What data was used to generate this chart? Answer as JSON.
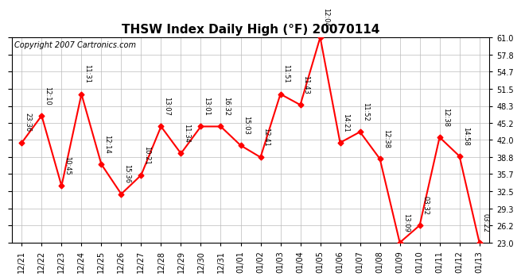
{
  "title": "THSW Index Daily High (°F) 20070114",
  "copyright": "Copyright 2007 Cartronics.com",
  "x_labels": [
    "12/21",
    "12/22",
    "12/23",
    "12/24",
    "12/25",
    "12/26",
    "12/27",
    "12/28",
    "12/29",
    "12/30",
    "12/31",
    "01/01",
    "01/02",
    "01/03",
    "01/04",
    "01/05",
    "01/06",
    "01/07",
    "01/08",
    "01/09",
    "01/10",
    "01/11",
    "01/12",
    "01/13"
  ],
  "y_values": [
    41.5,
    46.5,
    33.5,
    50.5,
    37.5,
    32.0,
    35.5,
    44.5,
    39.5,
    44.5,
    44.5,
    41.0,
    38.8,
    50.5,
    48.5,
    61.0,
    41.5,
    43.5,
    38.5,
    23.0,
    26.2,
    42.5,
    39.0,
    23.0
  ],
  "time_labels": [
    "23:36",
    "12:10",
    "10:45",
    "11:31",
    "12:14",
    "15:36",
    "10:21",
    "13:07",
    "11:34",
    "13:01",
    "16:32",
    "15:03",
    "12:41",
    "11:51",
    "11:43",
    "12:04",
    "14:21",
    "11:52",
    "12:38",
    "13:09",
    "03:32",
    "12:38",
    "14:58",
    "03:22"
  ],
  "y_ticks": [
    23.0,
    26.2,
    29.3,
    32.5,
    35.7,
    38.8,
    42.0,
    45.2,
    48.3,
    51.5,
    54.7,
    57.8,
    61.0
  ],
  "y_min": 23.0,
  "y_max": 61.0,
  "line_color": "red",
  "marker_color": "red",
  "bg_color": "white",
  "grid_color": "#bbbbbb",
  "title_fontsize": 11,
  "copyright_fontsize": 7,
  "label_fontsize": 6
}
